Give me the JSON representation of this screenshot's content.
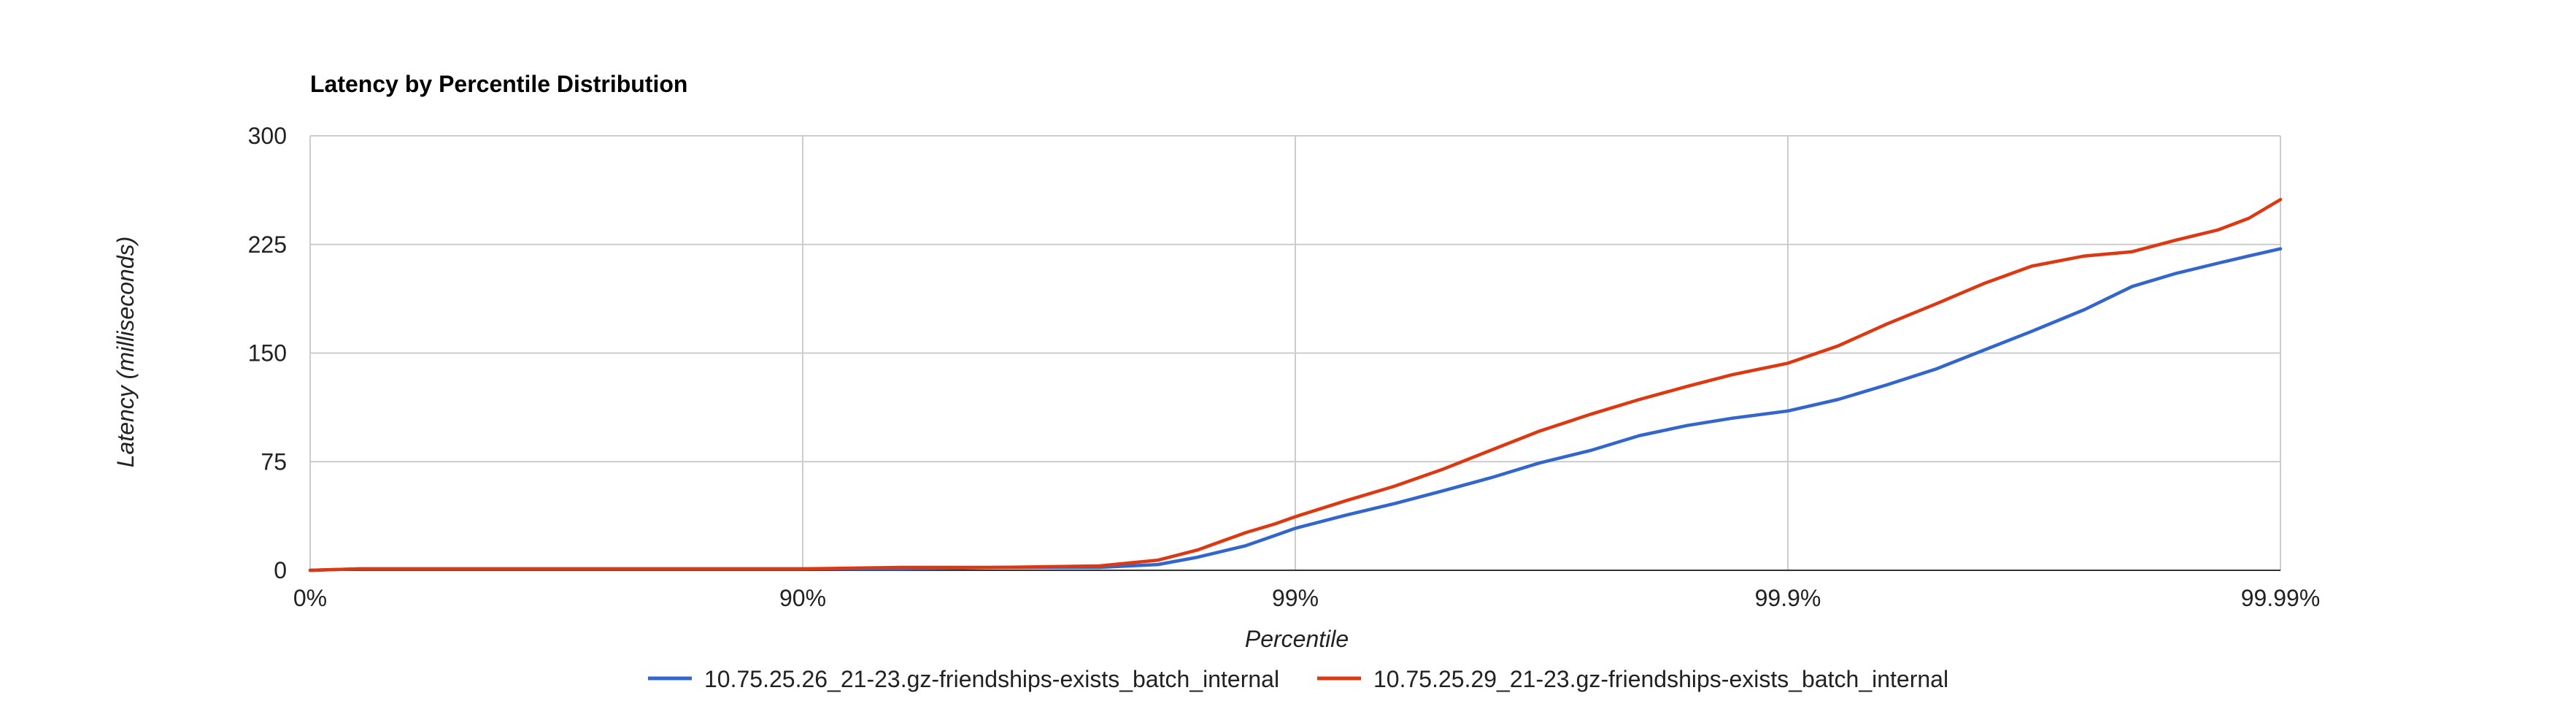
{
  "chart_data": {
    "type": "line",
    "title": "Latency by Percentile Distribution",
    "xlabel": "Percentile",
    "ylabel": "Latency (milliseconds)",
    "x_scale": "percentile-log",
    "x_tick_labels": [
      "0%",
      "90%",
      "99%",
      "99.9%",
      "99.99%"
    ],
    "x_tick_values": [
      0,
      90,
      99,
      99.9,
      99.99
    ],
    "ylim": [
      0,
      300
    ],
    "y_ticks": [
      0,
      75,
      150,
      225,
      300
    ],
    "grid": true,
    "legend_position": "bottom",
    "series": [
      {
        "name": "10.75.25.26_21-23.gz-friendships-exists_batch_internal",
        "color": "#3366cc",
        "x": [
          0,
          20.6,
          50,
          80,
          90,
          93.7,
          96.0,
          97.5,
          98.1,
          98.42,
          98.74,
          98.9,
          99.0,
          99.21,
          99.37,
          99.5,
          99.6,
          99.68,
          99.75,
          99.8,
          99.84,
          99.87,
          99.9,
          99.921,
          99.937,
          99.95,
          99.96,
          99.968,
          99.975,
          99.98,
          99.9837,
          99.9866,
          99.9884,
          99.99
        ],
        "y": [
          0,
          1,
          1,
          1,
          1,
          1,
          2,
          2,
          4,
          9,
          17,
          24,
          29,
          38,
          46,
          55,
          64,
          74,
          83,
          93,
          100,
          105,
          110,
          118,
          128,
          139,
          152,
          165,
          180,
          196,
          205,
          212,
          217,
          222
        ]
      },
      {
        "name": "10.75.25.29_21-23.gz-friendships-exists_batch_internal",
        "color": "#dc3912",
        "x": [
          0,
          20.6,
          50,
          80,
          90,
          93.7,
          96.0,
          97.5,
          98.1,
          98.42,
          98.74,
          98.9,
          99.0,
          99.21,
          99.37,
          99.5,
          99.6,
          99.68,
          99.75,
          99.8,
          99.84,
          99.87,
          99.9,
          99.921,
          99.937,
          99.95,
          99.96,
          99.968,
          99.975,
          99.98,
          99.9837,
          99.9866,
          99.9884,
          99.99
        ],
        "y": [
          0,
          1,
          1,
          1,
          1,
          2,
          2,
          3,
          7,
          14,
          26,
          32,
          37,
          48,
          58,
          70,
          83,
          96,
          108,
          118,
          127,
          135,
          143,
          155,
          170,
          184,
          198,
          210,
          217,
          220,
          228,
          235,
          243,
          256
        ]
      }
    ]
  }
}
